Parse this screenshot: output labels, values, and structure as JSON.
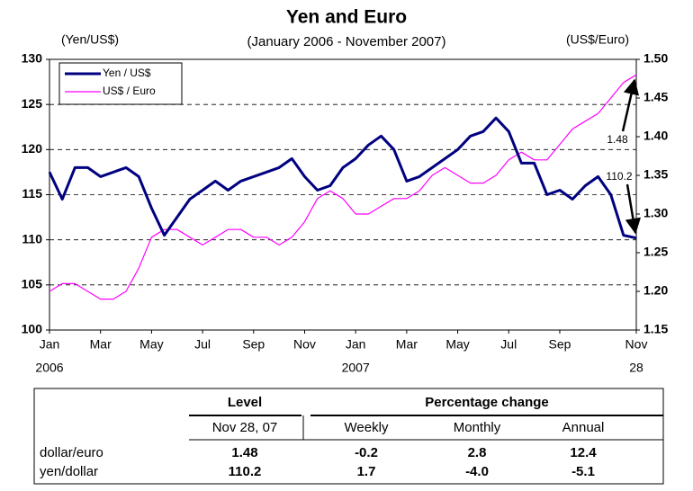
{
  "chart_data": {
    "type": "line",
    "title": "Yen and Euro",
    "subtitle": "(January 2006 - November 2007)",
    "y_label": "(Yen/US$)",
    "y2_label": "(US$/Euro)",
    "categories": [
      "Jan",
      null,
      null,
      null,
      "Mar",
      null,
      null,
      null,
      "May",
      null,
      null,
      null,
      "Jul",
      null,
      null,
      null,
      "Sep",
      null,
      null,
      null,
      "Nov",
      null,
      null,
      null,
      "Jan",
      null,
      null,
      null,
      "Mar",
      null,
      null,
      null,
      "May",
      null,
      null,
      null,
      "Jul",
      null,
      null,
      null,
      "Sep",
      null,
      null,
      null,
      null,
      null,
      "Nov"
    ],
    "category_sublabels": [
      "2006",
      null,
      null,
      null,
      null,
      null,
      null,
      null,
      null,
      null,
      null,
      null,
      null,
      null,
      null,
      null,
      null,
      null,
      null,
      null,
      null,
      null,
      null,
      null,
      "2007",
      null,
      null,
      null,
      null,
      null,
      null,
      null,
      null,
      null,
      null,
      null,
      null,
      null,
      null,
      null,
      null,
      null,
      null,
      null,
      null,
      null,
      "28"
    ],
    "series": [
      {
        "name": "Yen / US$",
        "color": "#000080",
        "axis": "y",
        "values": [
          117.5,
          114.5,
          118,
          118,
          117,
          117.5,
          118,
          117,
          113.5,
          110.5,
          112.5,
          114.5,
          115.5,
          116.5,
          115.5,
          116.5,
          117,
          117.5,
          118,
          119,
          117,
          115.5,
          116,
          118,
          119,
          120.5,
          121.5,
          120,
          116.5,
          117,
          118,
          119,
          120,
          121.5,
          122,
          123.5,
          122,
          118.5,
          118.5,
          115,
          115.5,
          114.5,
          116,
          117,
          115,
          110.5,
          110.2
        ]
      },
      {
        "name": "US$ / Euro",
        "color": "#ff00ff",
        "axis": "y2",
        "values": [
          1.2,
          1.21,
          1.21,
          1.2,
          1.19,
          1.19,
          1.2,
          1.23,
          1.27,
          1.28,
          1.28,
          1.27,
          1.26,
          1.27,
          1.28,
          1.28,
          1.27,
          1.27,
          1.26,
          1.27,
          1.29,
          1.32,
          1.33,
          1.32,
          1.3,
          1.3,
          1.31,
          1.32,
          1.32,
          1.33,
          1.35,
          1.36,
          1.35,
          1.34,
          1.34,
          1.35,
          1.37,
          1.38,
          1.37,
          1.37,
          1.39,
          1.41,
          1.42,
          1.43,
          1.45,
          1.47,
          1.48
        ]
      }
    ],
    "ylim": [
      100,
      130
    ],
    "yticks": [
      100,
      105,
      110,
      115,
      120,
      125,
      130
    ],
    "y2lim": [
      1.15,
      1.5
    ],
    "y2ticks": [
      1.15,
      {
        "value": 1.2,
        "label": "1.20"
      },
      1.25,
      {
        "value": 1.3,
        "label": "1.30"
      },
      1.35,
      {
        "value": 1.4,
        "label": "1.40"
      },
      1.45,
      {
        "value": 1.5,
        "label": "1.50"
      }
    ],
    "grid": true,
    "legend": "upper left",
    "annotations": [
      "1.48",
      "110.2"
    ]
  },
  "table": {
    "header": [
      "Level",
      "Percentage change"
    ],
    "subheader": [
      "Nov 28, 07",
      "Weekly",
      "Monthly",
      "Annual"
    ],
    "rows": [
      [
        "dollar/euro",
        "1.48",
        "-0.2",
        "2.8",
        "12.4"
      ],
      [
        "yen/dollar",
        "110.2",
        "1.7",
        "-4.0",
        "-5.1"
      ]
    ]
  }
}
